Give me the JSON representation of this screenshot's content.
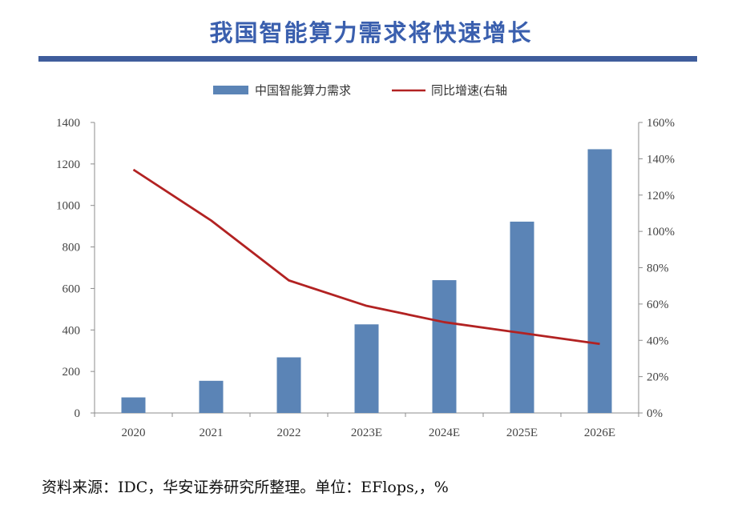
{
  "title": "我国智能算力需求将快速增长",
  "source": "资料来源：IDC，华安证券研究所整理。单位：EFlops,，%",
  "colors": {
    "bar": "#5b84b6",
    "line": "#b22222",
    "title": "#3a5fae",
    "rule": "#3f5d9c"
  },
  "chart_data": {
    "type": "bar",
    "categories": [
      "2020",
      "2021",
      "2022",
      "2023E",
      "2024E",
      "2025E",
      "2026E"
    ],
    "series": [
      {
        "name": "中国智能算力需求",
        "type": "bar",
        "axis": "left",
        "values": [
          75,
          155,
          268,
          427,
          640,
          922,
          1271
        ]
      },
      {
        "name": "同比增速(右轴",
        "type": "line",
        "axis": "right",
        "values": [
          134,
          106,
          73,
          59,
          50,
          44,
          38
        ]
      }
    ],
    "y_left": {
      "ticks": [
        0,
        200,
        400,
        600,
        800,
        1000,
        1200,
        1400
      ],
      "ylim": [
        0,
        1400
      ]
    },
    "y_right": {
      "ticks": [
        "0%",
        "20%",
        "40%",
        "60%",
        "80%",
        "100%",
        "120%",
        "140%",
        "160%"
      ],
      "ylim": [
        0,
        160
      ]
    },
    "legend_position": "top-center",
    "grid": false
  }
}
